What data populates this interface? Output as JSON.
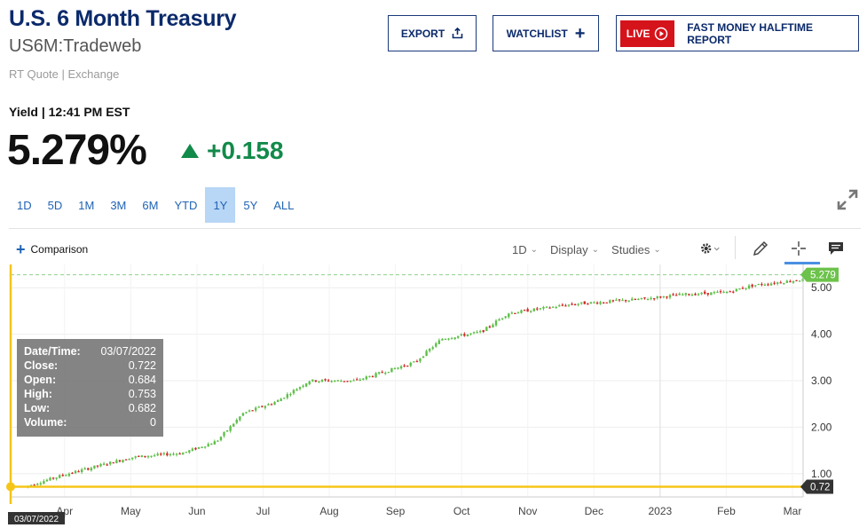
{
  "header": {
    "title": "U.S. 6 Month Treasury",
    "symbol": "US6M:Tradeweb",
    "quote_source": "RT Quote | Exchange",
    "export_label": "EXPORT",
    "watchlist_label": "WATCHLIST",
    "live_badge": "LIVE",
    "live_text": "FAST MONEY HALFTIME REPORT"
  },
  "quote": {
    "yield_label": "Yield | 12:41 PM EST",
    "price": "5.279%",
    "change": "+0.158",
    "direction": "up"
  },
  "ranges": [
    "1D",
    "5D",
    "1M",
    "3M",
    "6M",
    "YTD",
    "1Y",
    "5Y",
    "ALL"
  ],
  "active_range": "1Y",
  "toolbar": {
    "comparison_label": "Comparison",
    "interval_label": "1D",
    "display_label": "Display",
    "studies_label": "Studies"
  },
  "tooltip": {
    "rows": [
      {
        "k": "Date/Time:",
        "v": "03/07/2022"
      },
      {
        "k": "Close:",
        "v": "0.722"
      },
      {
        "k": "Open:",
        "v": "0.684"
      },
      {
        "k": "High:",
        "v": "0.753"
      },
      {
        "k": "Low:",
        "v": "0.682"
      },
      {
        "k": "Volume:",
        "v": "0"
      }
    ]
  },
  "colors": {
    "up": "#5fbf4a",
    "down": "#d42a2a",
    "crosshair": "#f5c518",
    "current_tag": "#6cc24a",
    "brand": "#0b2a6b"
  },
  "chart_data": {
    "type": "candlestick",
    "ylim": [
      0.5,
      5.5
    ],
    "y_ticks": [
      1.0,
      2.0,
      3.0,
      4.0,
      5.0
    ],
    "y_tick_labels": [
      "1.00",
      "2.00",
      "3.00",
      "4.00",
      "5.00"
    ],
    "x_tick_labels": [
      "Apr",
      "May",
      "Jun",
      "Jul",
      "Aug",
      "Sep",
      "Oct",
      "Nov",
      "Dec",
      "2023",
      "Feb",
      "Mar"
    ],
    "current_value_label": "5.279",
    "crosshair_value_label": "0.72",
    "crosshair_date_label": "03/07/2022",
    "trend": [
      {
        "t": 0,
        "v": 0.72
      },
      {
        "t": 0.6,
        "v": 0.98
      },
      {
        "t": 1.6,
        "v": 1.35
      },
      {
        "t": 2.4,
        "v": 1.45
      },
      {
        "t": 2.9,
        "v": 1.7
      },
      {
        "t": 3.3,
        "v": 2.3
      },
      {
        "t": 3.8,
        "v": 2.55
      },
      {
        "t": 4.3,
        "v": 3.0
      },
      {
        "t": 5.0,
        "v": 3.0
      },
      {
        "t": 5.9,
        "v": 3.4
      },
      {
        "t": 6.3,
        "v": 3.9
      },
      {
        "t": 6.9,
        "v": 4.05
      },
      {
        "t": 7.3,
        "v": 4.45
      },
      {
        "t": 7.8,
        "v": 4.55
      },
      {
        "t": 8.3,
        "v": 4.65
      },
      {
        "t": 9.3,
        "v": 4.75
      },
      {
        "t": 9.9,
        "v": 4.85
      },
      {
        "t": 10.6,
        "v": 4.9
      },
      {
        "t": 11.0,
        "v": 5.05
      },
      {
        "t": 11.9,
        "v": 5.2
      }
    ]
  }
}
